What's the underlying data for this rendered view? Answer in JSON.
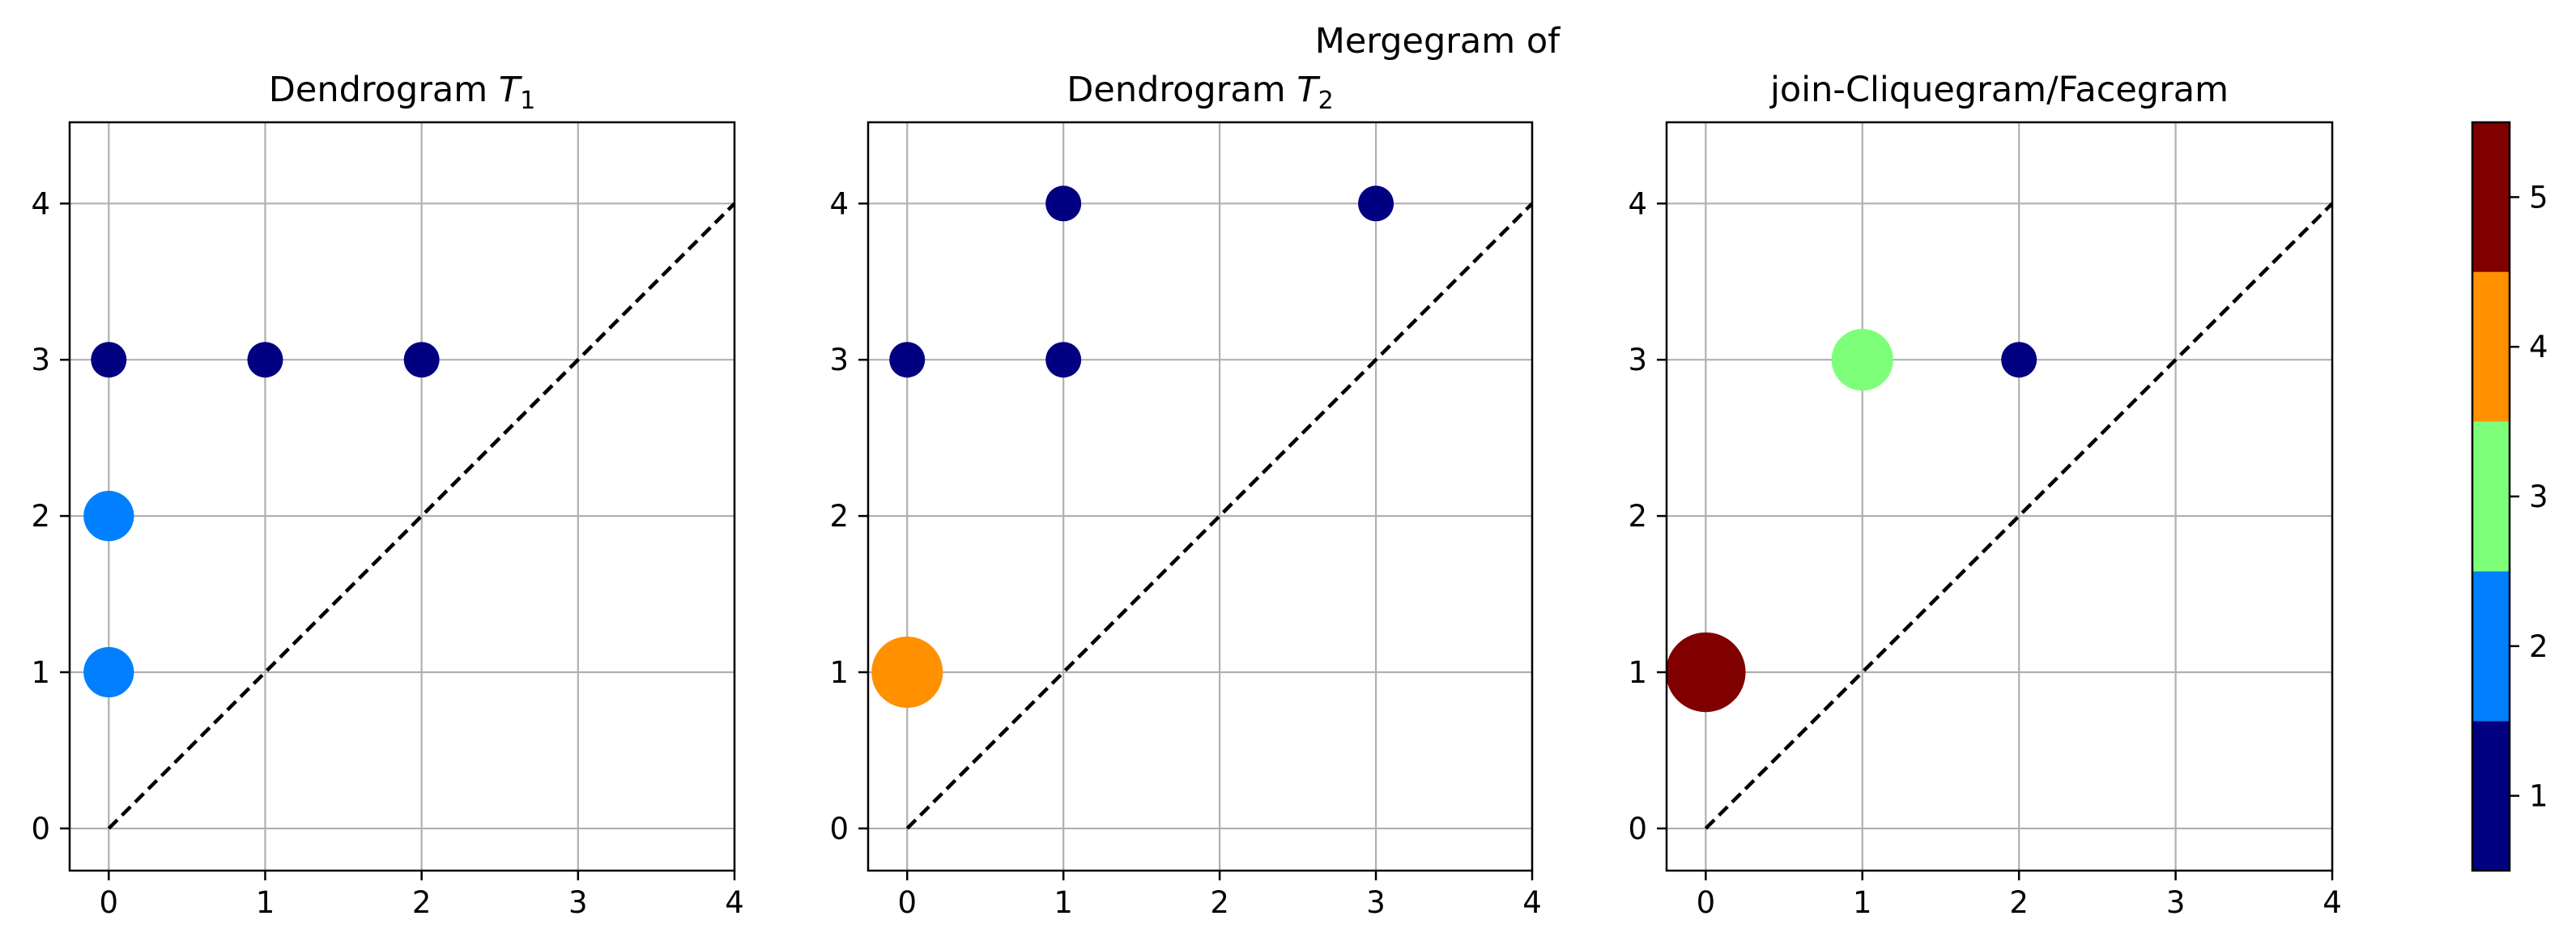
{
  "figure": {
    "suptitle": "Mergegram of",
    "colors": {
      "grid": "#b0b0b0",
      "diagonal": "#000000",
      "frame": "#000000"
    }
  },
  "chart_data": [
    {
      "type": "scatter",
      "title": "Dendrogram T",
      "title_subscript": "1",
      "xlim": [
        -0.25,
        4
      ],
      "ylim": [
        -0.27,
        4.52
      ],
      "xticks": [
        "0",
        "1",
        "2",
        "3",
        "4"
      ],
      "yticks": [
        "0",
        "1",
        "2",
        "3",
        "4"
      ],
      "grid": true,
      "diagonal": true,
      "points": [
        {
          "x": 0,
          "y": 3,
          "multiplicity": 1
        },
        {
          "x": 1,
          "y": 3,
          "multiplicity": 1
        },
        {
          "x": 2,
          "y": 3,
          "multiplicity": 1
        },
        {
          "x": 0,
          "y": 2,
          "multiplicity": 2
        },
        {
          "x": 0,
          "y": 1,
          "multiplicity": 2
        }
      ]
    },
    {
      "type": "scatter",
      "title": "Dendrogram T",
      "title_subscript": "2",
      "xlim": [
        -0.25,
        4
      ],
      "ylim": [
        -0.27,
        4.52
      ],
      "xticks": [
        "0",
        "1",
        "2",
        "3",
        "4"
      ],
      "yticks": [
        "0",
        "1",
        "2",
        "3",
        "4"
      ],
      "grid": true,
      "diagonal": true,
      "points": [
        {
          "x": 1,
          "y": 4,
          "multiplicity": 1
        },
        {
          "x": 3,
          "y": 4,
          "multiplicity": 1
        },
        {
          "x": 0,
          "y": 3,
          "multiplicity": 1
        },
        {
          "x": 1,
          "y": 3,
          "multiplicity": 1
        },
        {
          "x": 0,
          "y": 1,
          "multiplicity": 4
        }
      ]
    },
    {
      "type": "scatter",
      "title": "join-Cliquegram/Facegram",
      "title_subscript": "",
      "xlim": [
        -0.25,
        4
      ],
      "ylim": [
        -0.27,
        4.52
      ],
      "xticks": [
        "0",
        "1",
        "2",
        "3",
        "4"
      ],
      "yticks": [
        "0",
        "1",
        "2",
        "3",
        "4"
      ],
      "grid": true,
      "diagonal": true,
      "points": [
        {
          "x": 1,
          "y": 3,
          "multiplicity": 3
        },
        {
          "x": 2,
          "y": 3,
          "multiplicity": 1
        },
        {
          "x": 0,
          "y": 1,
          "multiplicity": 5
        }
      ]
    }
  ],
  "colorbar": {
    "type": "colorbar",
    "range": [
      0.5,
      5.5
    ],
    "levels": [
      {
        "value": 1,
        "label": "1",
        "color": "#000080"
      },
      {
        "value": 2,
        "label": "2",
        "color": "#0080ff"
      },
      {
        "value": 3,
        "label": "3",
        "color": "#7dff7a"
      },
      {
        "value": 4,
        "label": "4",
        "color": "#ff9000"
      },
      {
        "value": 5,
        "label": "5",
        "color": "#800000"
      }
    ]
  }
}
